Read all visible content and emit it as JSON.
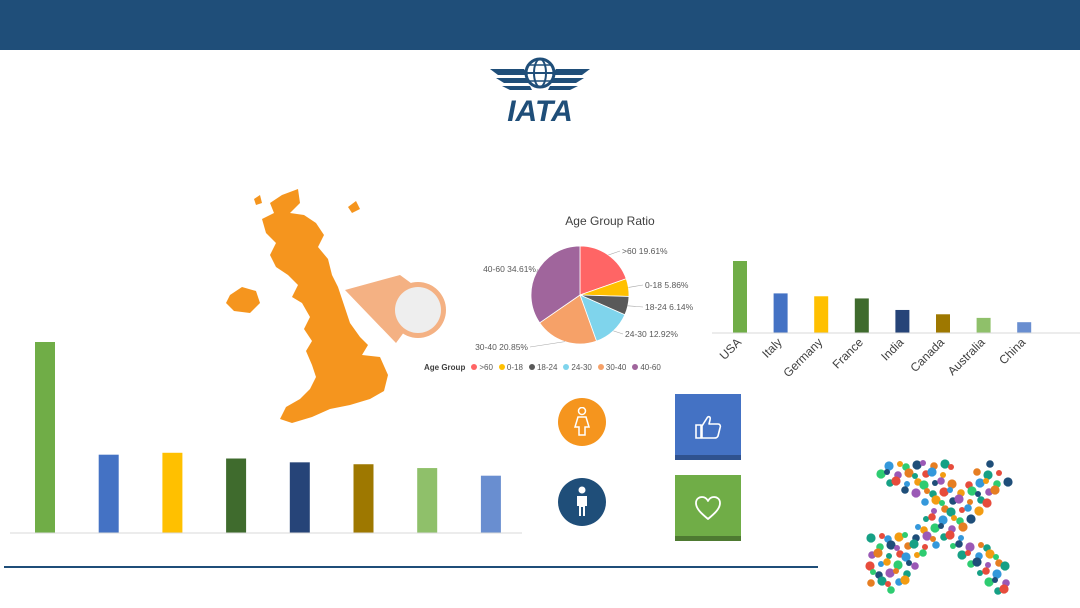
{
  "logo": {
    "text": "IATA",
    "icon": "iata-globe-wings-icon",
    "color": "#1f4e79"
  },
  "map": {
    "icon": "uk-map-icon",
    "fill": "#f5951e",
    "callout_fill": "#f4b183",
    "callout_circle": "#eeeeee"
  },
  "chart_data": [
    {
      "type": "bar",
      "categories": [
        "",
        "",
        "",
        "",
        "",
        "",
        "",
        ""
      ],
      "values": [
        100,
        41,
        42,
        39,
        37,
        36,
        34,
        30
      ],
      "colors": [
        "#70ad47",
        "#4472c4",
        "#ffc000",
        "#3f6b2d",
        "#264478",
        "#9e7800",
        "#8fc06a",
        "#698ed0"
      ],
      "ylim": [
        0,
        100
      ],
      "grid": false
    },
    {
      "type": "pie",
      "title": "Age Group Ratio",
      "legend_title": "Age Group",
      "legend_position": "bottom",
      "slices": [
        {
          "label": ">60",
          "value": 19.61,
          "text": ">60 19.61%",
          "color": "#ff6565"
        },
        {
          "label": "0-18",
          "value": 5.86,
          "text": "0-18 5.86%",
          "color": "#ffc000"
        },
        {
          "label": "18-24",
          "value": 6.14,
          "text": "18-24 6.14%",
          "color": "#595959"
        },
        {
          "label": "24-30",
          "value": 12.92,
          "text": "24-30 12.92%",
          "color": "#7fd4ec"
        },
        {
          "label": "30-40",
          "value": 20.85,
          "text": "30-40 20.85%",
          "color": "#f6a168"
        },
        {
          "label": "40-60",
          "value": 34.61,
          "text": "40-60 34.61%",
          "color": "#a0659c"
        }
      ]
    },
    {
      "type": "bar",
      "categories": [
        "USA",
        "Italy",
        "Germany",
        "France",
        "India",
        "Canada",
        "Australia",
        "China"
      ],
      "values": [
        100,
        55,
        51,
        48,
        32,
        26,
        21,
        15
      ],
      "colors": [
        "#70ad47",
        "#4472c4",
        "#ffc000",
        "#3f6b2d",
        "#264478",
        "#9e7800",
        "#8fc06a",
        "#698ed0"
      ],
      "ylim": [
        0,
        100
      ],
      "grid": false
    }
  ],
  "icons": {
    "female": {
      "icon": "female-person-icon",
      "color": "#f5951e"
    },
    "male": {
      "icon": "male-person-icon",
      "color": "#1f4e79"
    },
    "like": {
      "icon": "thumbs-up-icon",
      "color": "#4472c4",
      "shadow": "#2f528f"
    },
    "heart": {
      "icon": "heart-icon",
      "color": "#70ad47",
      "shadow": "#4e7a31"
    }
  },
  "plane": {
    "icon": "travel-icons-airplane-icon"
  }
}
